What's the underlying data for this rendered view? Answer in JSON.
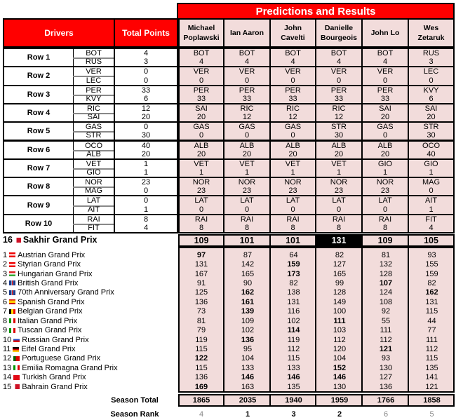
{
  "title": "Predictions and Results",
  "headers": {
    "drivers": "Drivers",
    "total_points": "Total Points"
  },
  "players": [
    "Michael Poplawski",
    "Ian Aaron",
    "John Cavelti",
    "Danielle Bourgeois",
    "John Lo",
    "Wes Zetaruk"
  ],
  "rows": [
    {
      "label": "Row 1",
      "drivers": [
        "BOT",
        "RUS"
      ],
      "points": [
        "4",
        "3"
      ],
      "picks": [
        [
          "BOT",
          "4"
        ],
        [
          "BOT",
          "4"
        ],
        [
          "BOT",
          "4"
        ],
        [
          "BOT",
          "4"
        ],
        [
          "BOT",
          "4"
        ],
        [
          "RUS",
          "3"
        ]
      ]
    },
    {
      "label": "Row 2",
      "drivers": [
        "VER",
        "LEC"
      ],
      "points": [
        "0",
        "0"
      ],
      "picks": [
        [
          "VER",
          "0"
        ],
        [
          "VER",
          "0"
        ],
        [
          "VER",
          "0"
        ],
        [
          "VER",
          "0"
        ],
        [
          "VER",
          "0"
        ],
        [
          "LEC",
          "0"
        ]
      ]
    },
    {
      "label": "Row 3",
      "drivers": [
        "PER",
        "KVY"
      ],
      "points": [
        "33",
        "6"
      ],
      "picks": [
        [
          "PER",
          "33"
        ],
        [
          "PER",
          "33"
        ],
        [
          "PER",
          "33"
        ],
        [
          "PER",
          "33"
        ],
        [
          "PER",
          "33"
        ],
        [
          "KVY",
          "6"
        ]
      ]
    },
    {
      "label": "Row 4",
      "drivers": [
        "RIC",
        "SAI"
      ],
      "points": [
        "12",
        "20"
      ],
      "picks": [
        [
          "SAI",
          "20"
        ],
        [
          "RIC",
          "12"
        ],
        [
          "RIC",
          "12"
        ],
        [
          "RIC",
          "12"
        ],
        [
          "SAI",
          "20"
        ],
        [
          "SAI",
          "20"
        ]
      ]
    },
    {
      "label": "Row 5",
      "drivers": [
        "GAS",
        "STR"
      ],
      "points": [
        "0",
        "30"
      ],
      "picks": [
        [
          "GAS",
          "0"
        ],
        [
          "GAS",
          "0"
        ],
        [
          "GAS",
          "0"
        ],
        [
          "STR",
          "30"
        ],
        [
          "GAS",
          "0"
        ],
        [
          "STR",
          "30"
        ]
      ]
    },
    {
      "label": "Row 6",
      "drivers": [
        "OCO",
        "ALB"
      ],
      "points": [
        "40",
        "20"
      ],
      "picks": [
        [
          "ALB",
          "20"
        ],
        [
          "ALB",
          "20"
        ],
        [
          "ALB",
          "20"
        ],
        [
          "ALB",
          "20"
        ],
        [
          "ALB",
          "20"
        ],
        [
          "OCO",
          "40"
        ]
      ]
    },
    {
      "label": "Row 7",
      "drivers": [
        "VET",
        "GIO"
      ],
      "points": [
        "1",
        "1"
      ],
      "picks": [
        [
          "VET",
          "1"
        ],
        [
          "VET",
          "1"
        ],
        [
          "VET",
          "1"
        ],
        [
          "VET",
          "1"
        ],
        [
          "GIO",
          "1"
        ],
        [
          "GIO",
          "1"
        ]
      ]
    },
    {
      "label": "Row 8",
      "drivers": [
        "NOR",
        "MAG"
      ],
      "points": [
        "23",
        "0"
      ],
      "picks": [
        [
          "NOR",
          "23"
        ],
        [
          "NOR",
          "23"
        ],
        [
          "NOR",
          "23"
        ],
        [
          "NOR",
          "23"
        ],
        [
          "NOR",
          "23"
        ],
        [
          "MAG",
          "0"
        ]
      ]
    },
    {
      "label": "Row 9",
      "drivers": [
        "LAT",
        "AIT"
      ],
      "points": [
        "0",
        "1"
      ],
      "picks": [
        [
          "LAT",
          "0"
        ],
        [
          "LAT",
          "0"
        ],
        [
          "LAT",
          "0"
        ],
        [
          "LAT",
          "0"
        ],
        [
          "LAT",
          "0"
        ],
        [
          "AIT",
          "1"
        ]
      ]
    },
    {
      "label": "Row 10",
      "drivers": [
        "RAI",
        "FIT"
      ],
      "points": [
        "8",
        "4"
      ],
      "picks": [
        [
          "RAI",
          "8"
        ],
        [
          "RAI",
          "8"
        ],
        [
          "RAI",
          "8"
        ],
        [
          "RAI",
          "8"
        ],
        [
          "RAI",
          "8"
        ],
        [
          "FIT",
          "4"
        ]
      ]
    }
  ],
  "current_race": {
    "number": "16",
    "name": "Sakhir Grand Prix",
    "flag": "flag-bahrain",
    "scores": [
      "109",
      "101",
      "101",
      "131",
      "109",
      "105"
    ],
    "highlight_index": 3
  },
  "races": [
    {
      "number": "1",
      "name": "Austrian Grand Prix",
      "flag": "flag-austria",
      "scores": [
        97,
        87,
        64,
        82,
        81,
        93
      ]
    },
    {
      "number": "2",
      "name": "Styrian Grand Prix",
      "flag": "flag-austria",
      "scores": [
        131,
        142,
        159,
        127,
        132,
        155
      ]
    },
    {
      "number": "3",
      "name": "Hungarian Grand Prix",
      "flag": "flag-hungary",
      "scores": [
        167,
        165,
        173,
        165,
        128,
        159
      ]
    },
    {
      "number": "4",
      "name": "British Grand Prix",
      "flag": "flag-uk",
      "scores": [
        91,
        90,
        82,
        99,
        107,
        82
      ]
    },
    {
      "number": "5",
      "name": "70th Anniversary Grand Prix",
      "flag": "flag-uk",
      "scores": [
        125,
        162,
        138,
        128,
        124,
        162
      ]
    },
    {
      "number": "6",
      "name": "Spanish Grand Prix",
      "flag": "flag-spain",
      "scores": [
        136,
        161,
        131,
        149,
        108,
        131
      ]
    },
    {
      "number": "7",
      "name": "Belgian Grand Prix",
      "flag": "flag-belgium",
      "scores": [
        73,
        139,
        116,
        100,
        92,
        115
      ]
    },
    {
      "number": "8",
      "name": "Italian Grand Prix",
      "flag": "flag-italy",
      "scores": [
        81,
        109,
        102,
        111,
        55,
        44
      ]
    },
    {
      "number": "9",
      "name": "Tuscan Grand Prix",
      "flag": "flag-italy",
      "scores": [
        79,
        102,
        114,
        103,
        111,
        77
      ]
    },
    {
      "number": "10",
      "name": "Russian Grand Prix",
      "flag": "flag-russia",
      "scores": [
        119,
        136,
        119,
        112,
        112,
        111
      ]
    },
    {
      "number": "11",
      "name": "Eifel Grand Prix",
      "flag": "flag-germany",
      "scores": [
        115,
        95,
        112,
        120,
        121,
        112
      ]
    },
    {
      "number": "12",
      "name": "Portuguese Grand Prix",
      "flag": "flag-portugal",
      "scores": [
        122,
        104,
        115,
        104,
        93,
        115
      ]
    },
    {
      "number": "13",
      "name": "Emilia Romagna Grand Prix",
      "flag": "flag-italy",
      "scores": [
        115,
        133,
        133,
        152,
        130,
        135
      ]
    },
    {
      "number": "14",
      "name": "Turkish Grand Prix",
      "flag": "flag-turkey",
      "scores": [
        136,
        146,
        146,
        146,
        127,
        141
      ]
    },
    {
      "number": "15",
      "name": "Bahrain Grand Prix",
      "flag": "flag-bahrain",
      "scores": [
        169,
        163,
        135,
        130,
        136,
        121
      ]
    }
  ],
  "season_total": {
    "label": "Season Total",
    "values": [
      "1865",
      "2035",
      "1940",
      "1959",
      "1766",
      "1858"
    ]
  },
  "season_rank": {
    "label": "Season Rank",
    "values": [
      "4",
      "1",
      "3",
      "2",
      "6",
      "5"
    ]
  },
  "colors": {
    "header_red": "#ff0000",
    "prediction_bg": "#f2dcdb",
    "highlight_bg": "#000000",
    "rank_grey": "#888888"
  }
}
